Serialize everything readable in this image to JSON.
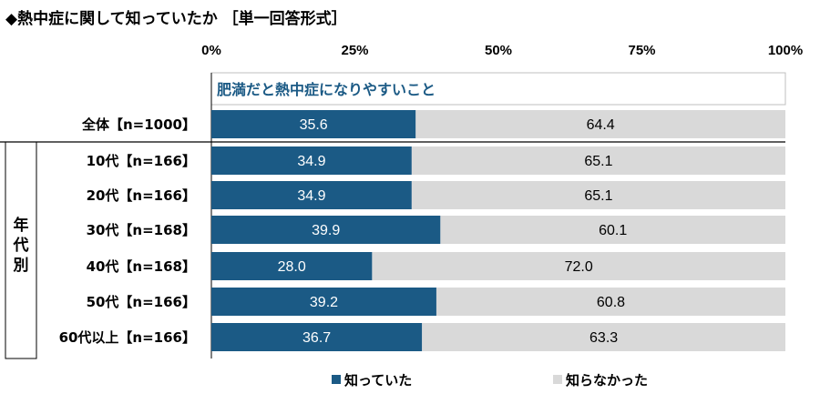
{
  "title": "◆熱中症に関して知っていたか ［単一回答形式］",
  "chart_data": {
    "type": "bar",
    "orientation": "horizontal",
    "stacked": true,
    "note": "肥満だと熱中症になりやすいこと",
    "xlim": [
      0,
      100
    ],
    "x_ticks": [
      "0%",
      "25%",
      "50%",
      "75%",
      "100%"
    ],
    "group_label": "年代別",
    "categories": [
      "全体【n=1000】",
      "10代【n=166】",
      "20代【n=166】",
      "30代【n=168】",
      "40代【n=168】",
      "50代【n=166】",
      "60代以上【n=166】"
    ],
    "series": [
      {
        "name": "知っていた",
        "color": "#1b5a85",
        "values": [
          35.6,
          34.9,
          34.9,
          39.9,
          28.0,
          39.2,
          36.7
        ],
        "labels": [
          "35.6",
          "34.9",
          "34.9",
          "39.9",
          "28.0",
          "39.2",
          "36.7"
        ]
      },
      {
        "name": "知らなかった",
        "color": "#d9d9d9",
        "values": [
          64.4,
          65.1,
          65.1,
          60.1,
          72.0,
          60.8,
          63.3
        ],
        "labels": [
          "64.4",
          "65.1",
          "65.1",
          "60.1",
          "72.0",
          "60.8",
          "63.3"
        ]
      }
    ],
    "grid": false,
    "legend_position": "bottom"
  }
}
